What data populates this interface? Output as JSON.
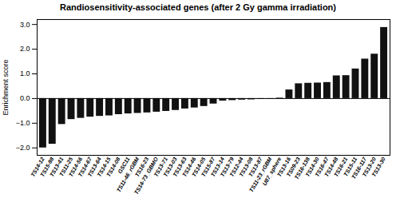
{
  "chart_data": {
    "type": "bar",
    "title": "Randiosensitivity-associated genes (after 2 Gy gamma irradiation)",
    "ylabel": "Enrichment score",
    "categories": [
      "TS14-12",
      "TS15-98",
      "TS13-41",
      "TS11-25",
      "TS14-56",
      "TS14-67",
      "TS13-64",
      "TS14-15",
      "TS14-08",
      "GSC11",
      "TS11-46_rGBM",
      "TS16-23",
      "TS14-73_GBMO",
      "TS13-71",
      "TS13-03",
      "TS13-63",
      "TS14-46",
      "TS14-05",
      "TS15-87",
      "TS13-14",
      "TS13-79",
      "TS12-44",
      "TS13-08",
      "TS13-87",
      "TS11-23_rGBM",
      "U87_sphere",
      "TS13-16",
      "TS09-23",
      "TS16-138",
      "TS14-30",
      "TS16-47",
      "TS14-48",
      "TS16-21",
      "TS15-11",
      "TS16-117",
      "TS13-20",
      "TS13-30"
    ],
    "values": [
      -2.0,
      -1.85,
      -1.05,
      -0.85,
      -0.8,
      -0.75,
      -0.72,
      -0.7,
      -0.65,
      -0.62,
      -0.6,
      -0.58,
      -0.55,
      -0.52,
      -0.48,
      -0.42,
      -0.38,
      -0.32,
      -0.22,
      -0.1,
      -0.08,
      -0.06,
      -0.05,
      -0.03,
      -0.02,
      0.02,
      0.35,
      0.6,
      0.62,
      0.63,
      0.65,
      0.92,
      0.93,
      1.2,
      1.6,
      1.8,
      2.88
    ],
    "color": "#111111",
    "ylim": [
      -2.3,
      3.2
    ],
    "yticks": [
      -2,
      -1,
      0,
      1,
      2,
      3
    ],
    "grid": false
  }
}
